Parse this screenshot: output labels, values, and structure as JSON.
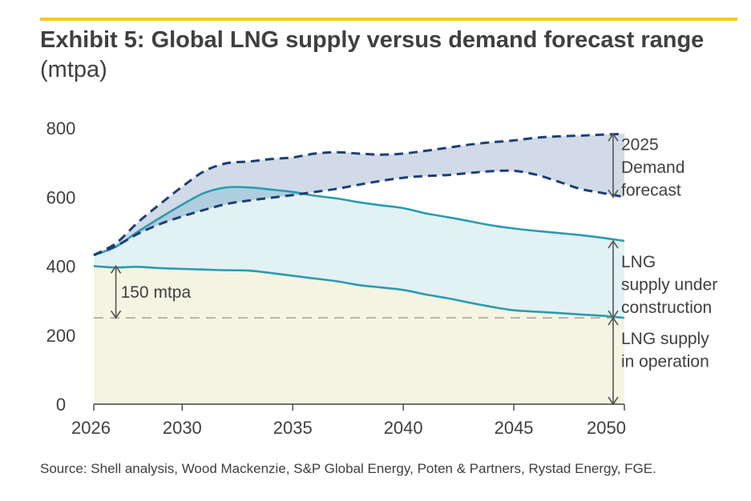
{
  "header": {
    "title_bold": "Exhibit 5: Global LNG supply versus demand forecast range",
    "title_unit": "(mtpa)"
  },
  "source": "Source: Shell analysis, Wood Mackenzie, S&P Global Energy, Poten & Partners, Rystad Energy, FGE.",
  "colors": {
    "accent_rule": "#f6c81e",
    "operation_fill": "#f4f4e2",
    "construction_fill": "#e2f1f4",
    "demand_fill": "#c9d3e3",
    "demand_overlap_fill": "#a6ccdc",
    "supply_line": "#2a9bb0",
    "demand_line": "#1d3f78",
    "marker": "#555555"
  },
  "chart_data": {
    "type": "area",
    "title": "Exhibit 5: Global LNG supply versus demand forecast range",
    "ylabel": "mtpa",
    "xlim": [
      2026,
      2050
    ],
    "ylim": [
      0,
      800
    ],
    "x_ticks": [
      "2026",
      "2030",
      "2035",
      "2040",
      "2045",
      "2050"
    ],
    "y_ticks": [
      "0",
      "200",
      "400",
      "600",
      "800"
    ],
    "x": [
      2026,
      2027,
      2028,
      2029,
      2030,
      2031,
      2032,
      2033,
      2034,
      2035,
      2036,
      2037,
      2038,
      2039,
      2040,
      2041,
      2042,
      2043,
      2044,
      2045,
      2046,
      2047,
      2048,
      2049,
      2050
    ],
    "series": [
      {
        "name": "LNG supply in operation",
        "values": [
          400,
          396,
          398,
          394,
          392,
          390,
          388,
          387,
          380,
          372,
          364,
          356,
          345,
          338,
          331,
          318,
          307,
          294,
          282,
          272,
          268,
          264,
          260,
          256,
          250
        ]
      },
      {
        "name": "LNG supply in operation + under construction",
        "values": [
          432,
          456,
          500,
          540,
          578,
          612,
          628,
          628,
          622,
          615,
          604,
          596,
          585,
          576,
          568,
          553,
          542,
          530,
          518,
          509,
          502,
          496,
          490,
          482,
          473
        ]
      },
      {
        "name": "2025 Demand forecast (high)",
        "values": [
          432,
          466,
          527,
          580,
          630,
          675,
          698,
          703,
          710,
          715,
          726,
          730,
          726,
          723,
          726,
          734,
          743,
          752,
          759,
          764,
          772,
          776,
          778,
          781,
          783
        ]
      },
      {
        "name": "2025 Demand forecast (low)",
        "values": [
          432,
          458,
          494,
          522,
          544,
          563,
          580,
          590,
          598,
          606,
          615,
          624,
          636,
          647,
          656,
          661,
          664,
          670,
          675,
          676,
          665,
          645,
          624,
          612,
          600
        ]
      }
    ],
    "annotations": [
      {
        "text": "150 mtpa",
        "from": 400,
        "to": 250,
        "at_x": 2027
      },
      {
        "text": "2025 Demand forecast",
        "lines": [
          "2025",
          "Demand",
          "forecast"
        ],
        "from": 783,
        "to": 600
      },
      {
        "text": "LNG supply under construction",
        "lines": [
          "LNG",
          "supply under",
          "construction"
        ],
        "from": 473,
        "to": 250
      },
      {
        "text": "LNG supply in operation",
        "lines": [
          "LNG supply",
          "in operation"
        ],
        "from": 250,
        "to": 0
      }
    ]
  }
}
